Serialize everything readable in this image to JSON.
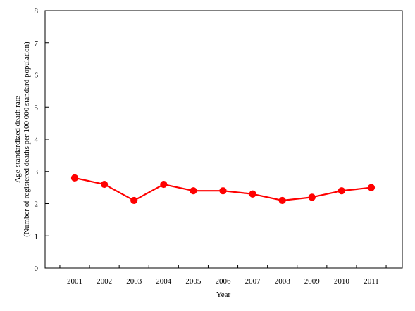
{
  "chart_data": {
    "type": "line",
    "categories": [
      "2001",
      "2002",
      "2003",
      "2004",
      "2005",
      "2006",
      "2007",
      "2008",
      "2009",
      "2010",
      "2011"
    ],
    "series": [
      {
        "values": [
          2.8,
          2.6,
          2.1,
          2.6,
          2.4,
          2.4,
          2.3,
          2.1,
          2.2,
          2.4,
          2.5
        ]
      }
    ],
    "xlabel": "Year",
    "ylabel_lines": [
      "Age-standardized death rate",
      "(Number of registered deaths per 100 000 standard population)"
    ],
    "ylim": [
      0,
      8
    ],
    "yticks": [
      "0",
      "1",
      "2",
      "3",
      "4",
      "5",
      "6",
      "7",
      "8"
    ],
    "grid": false,
    "legend": "none",
    "series_color": "#ff0000"
  }
}
